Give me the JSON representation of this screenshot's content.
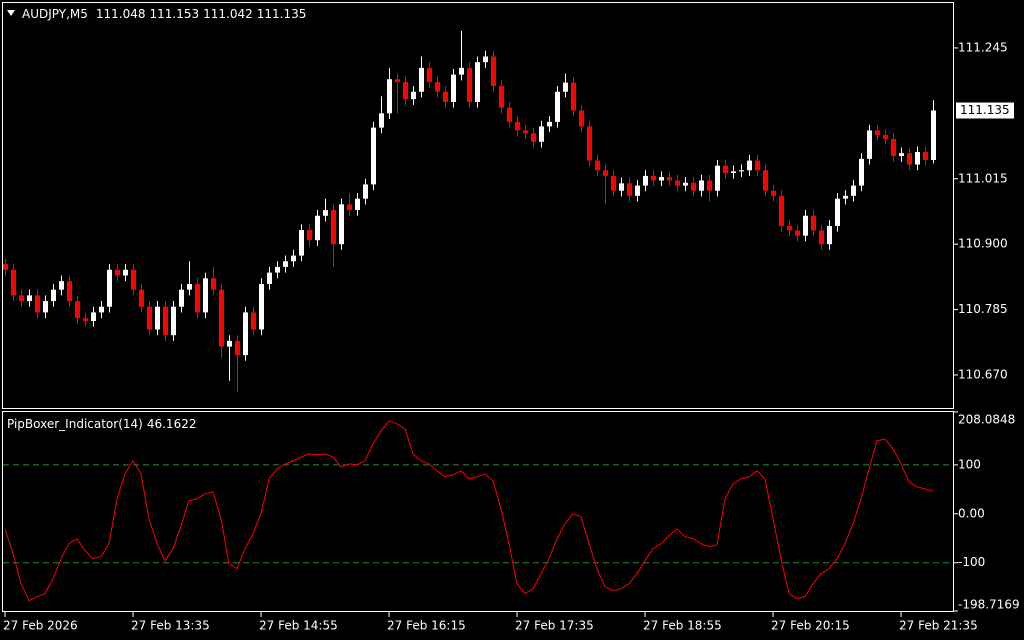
{
  "chart_data": [
    {
      "type": "candlestick",
      "title": "AUDJPY,M5",
      "categories": [
        "27 Feb 2026",
        null,
        null,
        null,
        null,
        null,
        null,
        null,
        null,
        null,
        null,
        null,
        null,
        null,
        null,
        null,
        "27 Feb 13:35",
        null,
        null,
        null,
        null,
        null,
        null,
        null,
        null,
        null,
        null,
        null,
        null,
        null,
        null,
        null,
        "27 Feb 14:55",
        null,
        null,
        null,
        null,
        null,
        null,
        null,
        null,
        null,
        null,
        null,
        null,
        null,
        null,
        null,
        "27 Feb 16:15",
        null,
        null,
        null,
        null,
        null,
        null,
        null,
        null,
        null,
        null,
        null,
        null,
        null,
        null,
        null,
        "27 Feb 17:35",
        null,
        null,
        null,
        null,
        null,
        null,
        null,
        null,
        null,
        null,
        null,
        null,
        null,
        null,
        null,
        "27 Feb 18:55",
        null,
        null,
        null,
        null,
        null,
        null,
        null,
        null,
        null,
        null,
        null,
        null,
        null,
        null,
        null,
        "27 Feb 20:15",
        null,
        null,
        null,
        null,
        null,
        null,
        null,
        null,
        null,
        null,
        null,
        null,
        null,
        null,
        null,
        "27 Feb 21:35",
        null,
        null,
        null,
        null
      ],
      "open": [
        110.865,
        110.855,
        110.81,
        110.8,
        110.81,
        110.78,
        110.8,
        110.82,
        110.835,
        110.8,
        110.77,
        110.765,
        110.78,
        110.79,
        110.855,
        110.845,
        110.855,
        110.82,
        110.79,
        110.75,
        110.79,
        110.74,
        110.79,
        110.82,
        110.83,
        110.78,
        110.84,
        110.82,
        110.72,
        110.73,
        110.705,
        110.78,
        110.75,
        110.83,
        110.85,
        110.86,
        110.87,
        110.88,
        110.925,
        110.907,
        110.95,
        110.96,
        110.9,
        110.97,
        110.96,
        110.98,
        111.005,
        111.105,
        111.13,
        111.19,
        111.185,
        111.155,
        111.168,
        111.21,
        111.185,
        111.168,
        111.15,
        111.198,
        111.21,
        111.15,
        111.22,
        111.23,
        111.178,
        111.14,
        111.115,
        111.1,
        111.095,
        111.08,
        111.107,
        111.115,
        111.168,
        111.184,
        111.135,
        111.107,
        111.047,
        111.03,
        111.02,
        110.994,
        111.007,
        110.985,
        111.003,
        111.02,
        111.012,
        111.018,
        111.012,
        111.003,
        111.008,
        110.994,
        111.012,
        110.994,
        111.038,
        111.025,
        111.028,
        111.03,
        111.047,
        111.03,
        110.994,
        110.985,
        110.932,
        110.924,
        110.915,
        110.95,
        110.924,
        110.9,
        110.932,
        110.98,
        110.985,
        111.003,
        111.05,
        111.1,
        111.092,
        111.085,
        111.055,
        111.06,
        111.04,
        111.062,
        111.048
      ],
      "high": [
        110.875,
        110.865,
        110.82,
        110.82,
        110.82,
        110.81,
        110.83,
        110.845,
        110.845,
        110.81,
        110.78,
        110.79,
        110.8,
        110.865,
        110.865,
        110.865,
        110.865,
        110.83,
        110.8,
        110.8,
        110.8,
        110.8,
        110.83,
        110.87,
        110.84,
        110.85,
        110.86,
        110.83,
        110.74,
        110.74,
        110.79,
        110.79,
        110.84,
        110.86,
        110.87,
        110.88,
        110.89,
        110.935,
        110.935,
        110.96,
        110.98,
        110.97,
        110.98,
        110.99,
        110.99,
        111.015,
        111.115,
        111.16,
        111.21,
        111.2,
        111.195,
        111.178,
        111.23,
        111.22,
        111.195,
        111.178,
        111.208,
        111.275,
        111.22,
        111.23,
        111.24,
        111.24,
        111.188,
        111.15,
        111.125,
        111.11,
        111.105,
        111.117,
        111.125,
        111.178,
        111.2,
        111.194,
        111.145,
        111.117,
        111.057,
        111.04,
        111.03,
        111.017,
        111.017,
        111.013,
        111.03,
        111.03,
        111.028,
        111.028,
        111.022,
        111.018,
        111.018,
        111.022,
        111.022,
        111.048,
        111.048,
        111.038,
        111.04,
        111.057,
        111.057,
        111.04,
        111.004,
        110.995,
        110.942,
        110.934,
        110.96,
        110.96,
        110.934,
        110.942,
        110.99,
        110.995,
        111.013,
        111.06,
        111.11,
        111.11,
        111.102,
        111.095,
        111.07,
        111.07,
        111.072,
        111.072,
        111.153
      ],
      "low": [
        110.845,
        110.8,
        110.79,
        110.79,
        110.77,
        110.77,
        110.79,
        110.81,
        110.79,
        110.76,
        110.755,
        110.755,
        110.77,
        110.78,
        110.835,
        110.835,
        110.81,
        110.78,
        110.74,
        110.74,
        110.73,
        110.73,
        110.78,
        110.81,
        110.77,
        110.77,
        110.81,
        110.7,
        110.66,
        110.64,
        110.695,
        110.74,
        110.74,
        110.82,
        110.84,
        110.85,
        110.86,
        110.87,
        110.895,
        110.897,
        110.94,
        110.86,
        110.89,
        110.95,
        110.95,
        110.97,
        110.995,
        111.095,
        111.12,
        111.13,
        111.145,
        111.145,
        111.158,
        111.175,
        111.158,
        111.14,
        111.14,
        111.188,
        111.14,
        111.14,
        111.21,
        111.168,
        111.13,
        111.105,
        111.09,
        111.085,
        111.07,
        111.07,
        111.097,
        111.105,
        111.158,
        111.125,
        111.097,
        111.037,
        111.02,
        110.97,
        110.984,
        110.984,
        110.975,
        110.975,
        110.993,
        111.002,
        111.002,
        111.002,
        110.993,
        110.993,
        110.984,
        110.984,
        110.975,
        110.984,
        111.015,
        111.015,
        111.018,
        111.02,
        111.02,
        110.984,
        110.975,
        110.922,
        110.914,
        110.905,
        110.905,
        110.914,
        110.89,
        110.89,
        110.922,
        110.97,
        110.975,
        110.993,
        111.04,
        111.082,
        111.075,
        111.045,
        111.045,
        111.03,
        111.03,
        111.038,
        111.042
      ],
      "close": [
        110.855,
        110.81,
        110.8,
        110.81,
        110.78,
        110.8,
        110.82,
        110.835,
        110.8,
        110.77,
        110.765,
        110.78,
        110.79,
        110.855,
        110.845,
        110.855,
        110.82,
        110.79,
        110.75,
        110.79,
        110.74,
        110.79,
        110.82,
        110.83,
        110.78,
        110.84,
        110.82,
        110.72,
        110.73,
        110.705,
        110.78,
        110.75,
        110.83,
        110.85,
        110.86,
        110.87,
        110.88,
        110.925,
        110.907,
        110.95,
        110.96,
        110.9,
        110.97,
        110.96,
        110.98,
        111.005,
        111.105,
        111.13,
        111.19,
        111.185,
        111.155,
        111.168,
        111.21,
        111.185,
        111.168,
        111.15,
        111.198,
        111.21,
        111.15,
        111.22,
        111.23,
        111.178,
        111.14,
        111.115,
        111.1,
        111.095,
        111.08,
        111.107,
        111.115,
        111.168,
        111.184,
        111.135,
        111.107,
        111.047,
        111.03,
        111.02,
        110.994,
        111.007,
        110.985,
        111.003,
        111.02,
        111.012,
        111.018,
        111.012,
        111.003,
        111.008,
        110.994,
        111.012,
        110.994,
        111.038,
        111.025,
        111.028,
        111.03,
        111.047,
        111.03,
        110.994,
        110.985,
        110.932,
        110.924,
        110.915,
        110.95,
        110.924,
        110.9,
        110.932,
        110.98,
        110.985,
        111.003,
        111.05,
        111.1,
        111.092,
        111.085,
        111.055,
        111.06,
        111.04,
        111.062,
        111.048,
        111.135
      ],
      "up_color": "#ffffff",
      "down_color": "#ff0000",
      "ylim": [
        110.612,
        111.324
      ],
      "yticks": [
        {
          "value": 110.67,
          "label": "110.670"
        },
        110.785,
        {
          "value": 110.9,
          "label": "110.900"
        },
        111.015,
        111.245
      ]
    },
    {
      "type": "line",
      "title": "PipBoxer_Indicator(14)",
      "color": "#ff0000",
      "values": [
        -30.6,
        -81.6,
        -142.9,
        -177.6,
        -169.4,
        -163.3,
        -132.7,
        -91.8,
        -61.2,
        -51.0,
        -75.5,
        -91.8,
        -87.8,
        -61.2,
        30.6,
        81.6,
        108.2,
        81.6,
        -10.2,
        -61.2,
        -95.9,
        -71.4,
        -24.5,
        26.5,
        30.6,
        40.8,
        44.9,
        -10.2,
        -102.0,
        -112.2,
        -71.4,
        -40.8,
        0,
        71.4,
        91.8,
        102.0,
        108.2,
        116.3,
        122.4,
        120.4,
        122.4,
        116.3,
        95.9,
        102.0,
        100.0,
        108.2,
        142.9,
        169.4,
        189.8,
        183.7,
        173.5,
        122.4,
        108.2,
        102.0,
        87.8,
        75.5,
        79.6,
        87.8,
        71.4,
        75.5,
        81.6,
        67.3,
        10.2,
        -61.2,
        -142.9,
        -163.3,
        -153.1,
        -122.4,
        -91.8,
        -51.0,
        -20.4,
        0,
        -6.1,
        -61.2,
        -112.2,
        -149.0,
        -157.1,
        -153.1,
        -142.9,
        -122.4,
        -95.9,
        -71.4,
        -61.2,
        -44.9,
        -30.6,
        -46.9,
        -51.0,
        -61.2,
        -67.3,
        -63.3,
        30.6,
        61.2,
        71.4,
        75.5,
        87.8,
        71.4,
        -10.2,
        -91.8,
        -163.3,
        -173.5,
        -169.4,
        -142.9,
        -122.4,
        -112.2,
        -91.8,
        -61.2,
        -20.4,
        30.6,
        91.8,
        149.0,
        153.1,
        132.7,
        102.0,
        65.3,
        55.1,
        51.0,
        46.1622
      ],
      "ylim": [
        -198.7169,
        208.0848
      ],
      "yticks": [
        -198.7169,
        -100,
        {
          "value": 0,
          "label": "0.00"
        },
        100,
        208.0848
      ],
      "levels": [
        -100,
        100
      ],
      "level_color": "#2e8b2e"
    }
  ]
}
